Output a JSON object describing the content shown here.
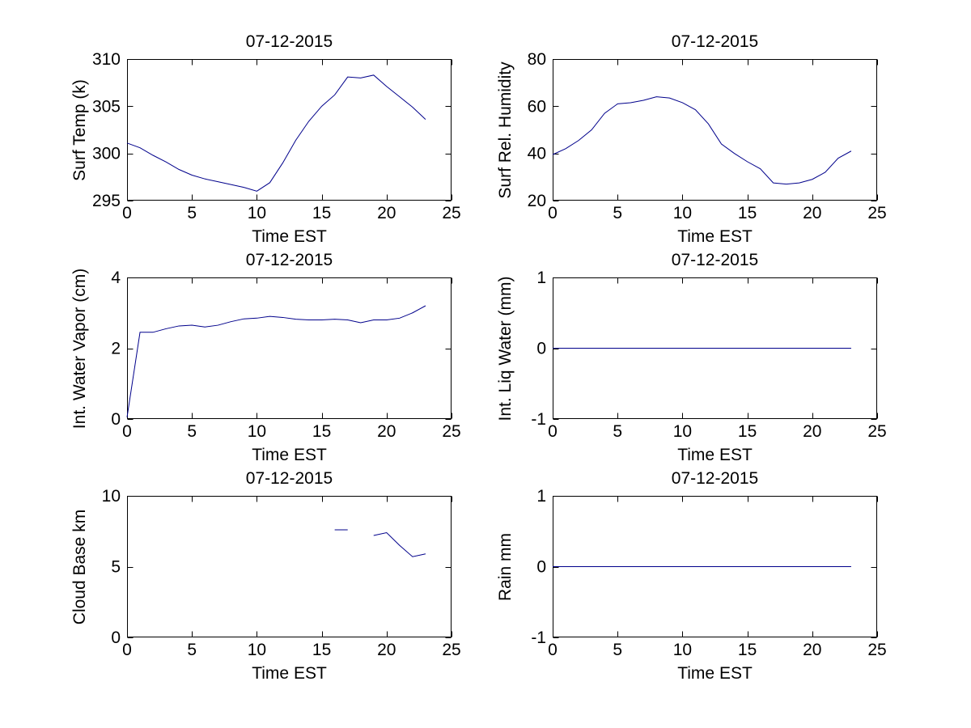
{
  "figure": {
    "background_color": "#ffffff",
    "axis_color": "#000000",
    "date_shown": "07-12-2015"
  },
  "chart_data": [
    {
      "type": "line",
      "title": "07-12-2015",
      "xlabel": "Time EST",
      "ylabel": "Surf Temp (k)",
      "xlim": [
        0,
        25
      ],
      "ylim": [
        295,
        310
      ],
      "xticks": [
        0,
        5,
        10,
        15,
        20,
        25
      ],
      "yticks": [
        295,
        300,
        305,
        310
      ],
      "grid": false,
      "legend": null,
      "line_color": "#00008B",
      "x": [
        0,
        1,
        2,
        3,
        4,
        5,
        6,
        7,
        8,
        9,
        10,
        11,
        12,
        13,
        14,
        15,
        16,
        17,
        18,
        19,
        20,
        21,
        22,
        23
      ],
      "y": [
        301.1,
        300.6,
        299.8,
        299.1,
        298.3,
        297.7,
        297.3,
        297.0,
        296.7,
        296.4,
        296.0,
        296.9,
        299.0,
        301.4,
        303.4,
        305.0,
        306.2,
        308.1,
        308.0,
        308.3,
        307.1,
        306.0,
        304.9,
        303.6
      ]
    },
    {
      "type": "line",
      "title": "07-12-2015",
      "xlabel": "Time EST",
      "ylabel": "Surf Rel. Humidity",
      "xlim": [
        0,
        25
      ],
      "ylim": [
        20,
        80
      ],
      "xticks": [
        0,
        5,
        10,
        15,
        20,
        25
      ],
      "yticks": [
        20,
        40,
        60,
        80
      ],
      "grid": false,
      "legend": null,
      "line_color": "#00008B",
      "x": [
        0,
        1,
        2,
        3,
        4,
        5,
        6,
        7,
        8,
        9,
        10,
        11,
        12,
        13,
        14,
        15,
        16,
        17,
        18,
        19,
        20,
        21,
        22,
        23
      ],
      "y": [
        39.5,
        42,
        45.5,
        50,
        57,
        61,
        61.5,
        62.5,
        64,
        63.5,
        61.5,
        58.5,
        52.5,
        44,
        40,
        36.5,
        33.5,
        27.5,
        27,
        27.5,
        29,
        32,
        38,
        41
      ]
    },
    {
      "type": "line",
      "title": "07-12-2015",
      "xlabel": "Time EST",
      "ylabel": "Int. Water Vapor (cm)",
      "xlim": [
        0,
        25
      ],
      "ylim": [
        0,
        4
      ],
      "xticks": [
        0,
        5,
        10,
        15,
        20,
        25
      ],
      "yticks": [
        0,
        2,
        4
      ],
      "grid": false,
      "legend": null,
      "line_color": "#00008B",
      "x": [
        0,
        1,
        2,
        3,
        4,
        5,
        6,
        7,
        8,
        9,
        10,
        11,
        12,
        13,
        14,
        15,
        16,
        17,
        18,
        19,
        20,
        21,
        22,
        23
      ],
      "y": [
        0.05,
        2.45,
        2.45,
        2.55,
        2.63,
        2.65,
        2.6,
        2.65,
        2.75,
        2.83,
        2.85,
        2.9,
        2.87,
        2.82,
        2.8,
        2.8,
        2.82,
        2.8,
        2.72,
        2.8,
        2.8,
        2.85,
        3.0,
        3.2
      ]
    },
    {
      "type": "line",
      "title": "07-12-2015",
      "xlabel": "Time EST",
      "ylabel": "Int. Liq Water (mm)",
      "xlim": [
        0,
        25
      ],
      "ylim": [
        -1,
        1
      ],
      "xticks": [
        0,
        5,
        10,
        15,
        20,
        25
      ],
      "yticks": [
        -1,
        0,
        1
      ],
      "grid": false,
      "legend": null,
      "line_color": "#00008B",
      "x": [
        0,
        1,
        2,
        3,
        4,
        5,
        6,
        7,
        8,
        9,
        10,
        11,
        12,
        13,
        14,
        15,
        16,
        17,
        18,
        19,
        20,
        21,
        22,
        23
      ],
      "y": [
        0,
        0,
        0,
        0,
        0,
        0,
        0,
        0,
        0,
        0,
        0,
        0,
        0,
        0,
        0,
        0,
        0,
        0,
        0,
        0,
        0,
        0,
        0,
        0
      ]
    },
    {
      "type": "line",
      "title": "07-12-2015",
      "xlabel": "Time EST",
      "ylabel": "Cloud Base km",
      "xlim": [
        0,
        25
      ],
      "ylim": [
        0,
        10
      ],
      "xticks": [
        0,
        5,
        10,
        15,
        20,
        25
      ],
      "yticks": [
        0,
        5,
        10
      ],
      "grid": false,
      "legend": null,
      "line_color": "#00008B",
      "x": [
        0,
        1,
        2,
        3,
        4,
        5,
        6,
        7,
        8,
        9,
        10,
        11,
        12,
        13,
        14,
        15,
        16,
        17,
        18,
        19,
        20,
        21,
        22,
        23
      ],
      "y": [
        null,
        null,
        null,
        null,
        null,
        null,
        null,
        null,
        null,
        null,
        null,
        null,
        null,
        null,
        null,
        null,
        7.6,
        7.6,
        null,
        7.2,
        7.4,
        6.5,
        5.7,
        5.9
      ]
    },
    {
      "type": "line",
      "title": "07-12-2015",
      "xlabel": "Time EST",
      "ylabel": "Rain mm",
      "xlim": [
        0,
        25
      ],
      "ylim": [
        -1,
        1
      ],
      "xticks": [
        0,
        5,
        10,
        15,
        20,
        25
      ],
      "yticks": [
        -1,
        0,
        1
      ],
      "grid": false,
      "legend": null,
      "line_color": "#00008B",
      "x": [
        0,
        1,
        2,
        3,
        4,
        5,
        6,
        7,
        8,
        9,
        10,
        11,
        12,
        13,
        14,
        15,
        16,
        17,
        18,
        19,
        20,
        21,
        22,
        23
      ],
      "y": [
        0,
        0,
        0,
        0,
        0,
        0,
        0,
        0,
        0,
        0,
        0,
        0,
        0,
        0,
        0,
        0,
        0,
        0,
        0,
        0,
        0,
        0,
        0,
        0
      ]
    }
  ]
}
